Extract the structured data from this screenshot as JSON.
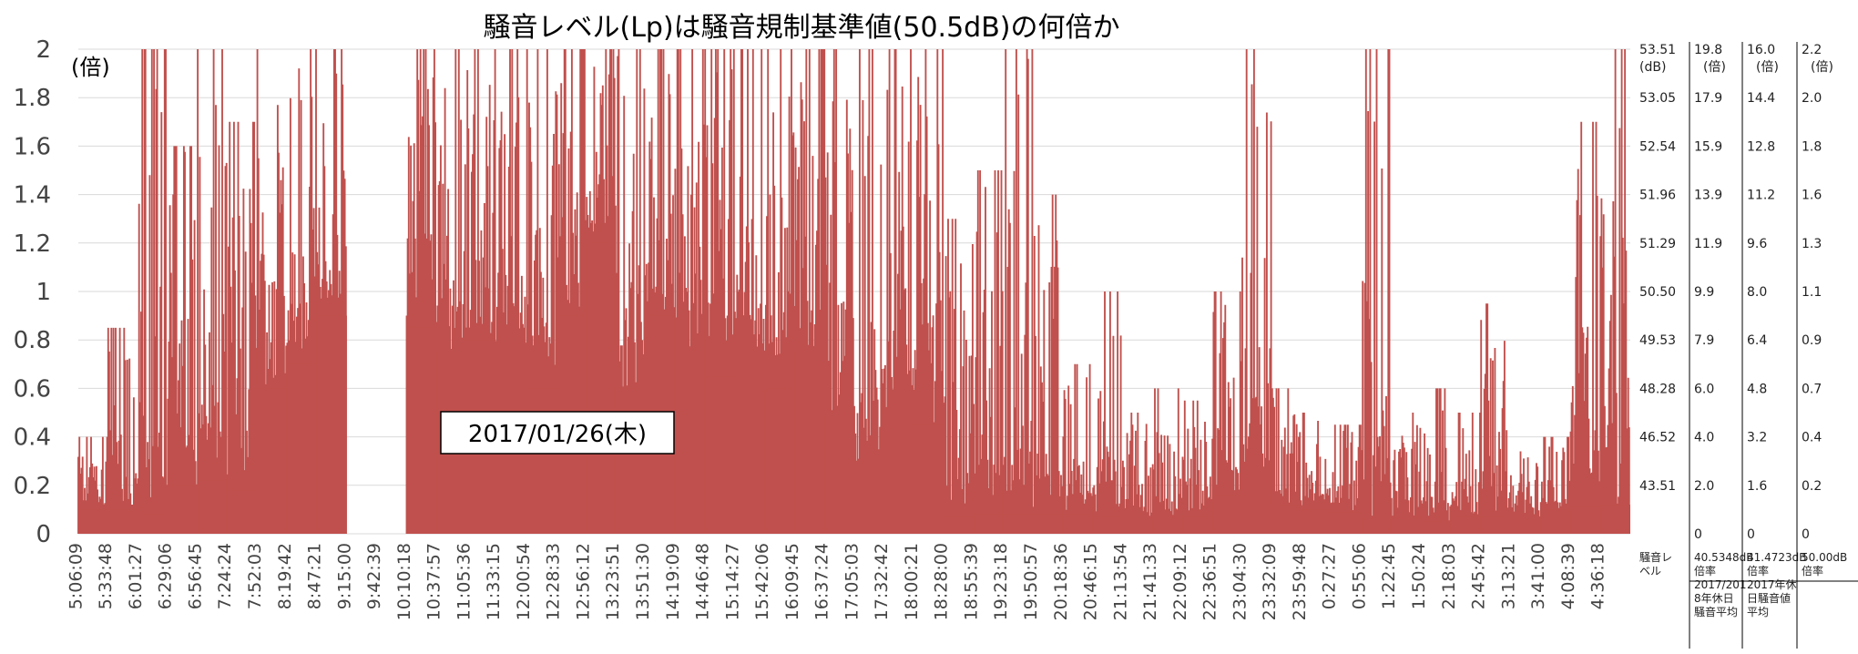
{
  "chart_data": {
    "type": "area",
    "title": "騒音レベル(Lp)は騒音規制基準値(50.5dB)の何倍か",
    "annotation": "2017/01/26(木)",
    "y_unit_label": "(倍)",
    "ylim": [
      0,
      2
    ],
    "y_ticks": [
      "0",
      "0.2",
      "0.4",
      "0.6",
      "0.8",
      "1",
      "1.2",
      "1.4",
      "1.6",
      "1.8",
      "2"
    ],
    "x_ticks": [
      "5:06:09",
      "5:33:48",
      "6:01:27",
      "6:29:06",
      "6:56:45",
      "7:24:24",
      "7:52:03",
      "8:19:42",
      "8:47:21",
      "9:15:00",
      "9:42:39",
      "10:10:18",
      "10:37:57",
      "11:05:36",
      "11:33:15",
      "12:00:54",
      "12:28:33",
      "12:56:12",
      "13:23:51",
      "13:51:30",
      "14:19:09",
      "14:46:48",
      "15:14:27",
      "15:42:06",
      "16:09:45",
      "16:37:24",
      "17:05:03",
      "17:32:42",
      "18:00:21",
      "18:28:00",
      "18:55:39",
      "19:23:18",
      "19:50:57",
      "20:18:36",
      "20:46:15",
      "21:13:54",
      "21:41:33",
      "22:09:12",
      "22:36:51",
      "23:04:30",
      "23:32:09",
      "23:59:48",
      "0:27:27",
      "0:55:06",
      "1:22:45",
      "1:50:24",
      "2:18:03",
      "2:45:42",
      "3:13:21",
      "3:41:00",
      "4:08:39",
      "4:36:18"
    ],
    "grid": true,
    "series": [
      {
        "color": "#c0504d",
        "profile": [
          [
            "5:06:09",
            0.1,
            0.4
          ],
          [
            "5:33:48",
            0.1,
            0.85
          ],
          [
            "6:01:27",
            0.08,
            2.0
          ],
          [
            "6:29:06",
            0.2,
            1.6
          ],
          [
            "6:56:45",
            0.22,
            2.0
          ],
          [
            "7:24:24",
            0.18,
            1.7
          ],
          [
            "7:52:03",
            0.6,
            2.0
          ],
          [
            "8:19:42",
            0.7,
            2.0
          ],
          [
            "8:47:21",
            0.9,
            2.0
          ],
          [
            "9:15:00",
            null,
            null
          ],
          [
            "9:42:39",
            null,
            null
          ],
          [
            "10:10:18",
            0.85,
            2.0
          ],
          [
            "10:37:57",
            0.75,
            2.0
          ],
          [
            "11:05:36",
            0.8,
            2.0
          ],
          [
            "11:33:15",
            0.75,
            2.0
          ],
          [
            "12:00:54",
            0.6,
            2.0
          ],
          [
            "12:28:33",
            0.9,
            2.0
          ],
          [
            "12:56:12",
            1.2,
            2.0
          ],
          [
            "13:23:51",
            0.6,
            2.0
          ],
          [
            "13:51:30",
            0.9,
            2.0
          ],
          [
            "14:19:09",
            0.75,
            2.0
          ],
          [
            "14:46:48",
            0.65,
            2.0
          ],
          [
            "15:14:27",
            0.75,
            2.0
          ],
          [
            "15:42:06",
            0.6,
            2.0
          ],
          [
            "16:09:45",
            0.75,
            2.0
          ],
          [
            "16:37:24",
            0.5,
            2.0
          ],
          [
            "17:05:03",
            0.25,
            2.0
          ],
          [
            "17:32:42",
            0.5,
            2.0
          ],
          [
            "18:00:21",
            0.45,
            2.0
          ],
          [
            "18:28:00",
            0.07,
            1.3
          ],
          [
            "18:55:39",
            0.08,
            1.5
          ],
          [
            "19:23:18",
            0.08,
            2.0
          ],
          [
            "19:50:57",
            0.08,
            1.4
          ],
          [
            "20:18:36",
            0.08,
            0.7
          ],
          [
            "20:46:15",
            0.07,
            1.0
          ],
          [
            "21:13:54",
            0.06,
            0.5
          ],
          [
            "21:41:33",
            0.06,
            0.6
          ],
          [
            "22:09:12",
            0.07,
            0.55
          ],
          [
            "22:36:51",
            0.16,
            1.0
          ],
          [
            "23:04:30",
            0.14,
            2.0
          ],
          [
            "23:32:09",
            0.12,
            0.6
          ],
          [
            "23:59:48",
            0.1,
            0.5
          ],
          [
            "0:27:27",
            0.09,
            0.45
          ],
          [
            "0:55:06",
            0.06,
            2.0
          ],
          [
            "1:22:45",
            0.06,
            0.5
          ],
          [
            "1:50:24",
            0.05,
            0.6
          ],
          [
            "2:18:03",
            0.07,
            0.5
          ],
          [
            "2:45:42",
            0.07,
            0.95
          ],
          [
            "3:13:21",
            0.06,
            0.4
          ],
          [
            "3:41:00",
            0.1,
            0.4
          ],
          [
            "4:08:39",
            0.11,
            1.7
          ],
          [
            "4:36:18",
            0.12,
            2.0
          ]
        ]
      }
    ],
    "right_axes": [
      {
        "values": [
          "53.51",
          "53.05",
          "52.54",
          "51.96",
          "51.29",
          "50.50",
          "49.53",
          "48.28",
          "46.52",
          "43.51",
          ""
        ],
        "unit": "(dB)",
        "footer": [
          "騒音レ",
          "ベル"
        ]
      },
      {
        "values": [
          "19.8",
          "17.9",
          "15.9",
          "13.9",
          "11.9",
          "9.9",
          "7.9",
          "6.0",
          "4.0",
          "2.0",
          "0"
        ],
        "unit": "(倍)",
        "footer": [
          "40.5348dB",
          "倍率",
          "2017/201",
          "8年休日",
          "騒音平均"
        ]
      },
      {
        "values": [
          "16.0",
          "14.4",
          "12.8",
          "11.2",
          "9.6",
          "8.0",
          "6.4",
          "4.8",
          "3.2",
          "1.6",
          "0"
        ],
        "unit": "(倍)",
        "footer": [
          "41.4723dB",
          "倍率",
          "2017年休",
          "日騒音値",
          "平均"
        ]
      },
      {
        "values": [
          "2.2",
          "2.0",
          "1.8",
          "1.6",
          "1.3",
          "1.1",
          "0.9",
          "0.7",
          "0.4",
          "0.2",
          "0"
        ],
        "unit": "(倍)",
        "footer": [
          "50.00dB",
          "倍率"
        ]
      }
    ]
  }
}
